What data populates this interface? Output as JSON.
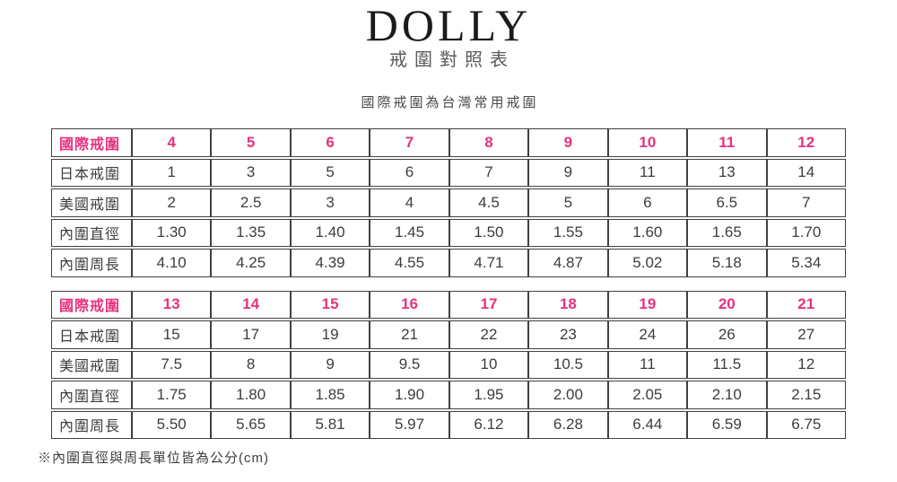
{
  "header": {
    "logo": "DOLLY",
    "subtitle": "戒圍對照表",
    "note": "國際戒圍為台灣常用戒圍"
  },
  "colors": {
    "accent_pink": "#e6327e",
    "text_dark": "#3d3d3d",
    "border_gray": "#414141"
  },
  "chart_data": [
    {
      "type": "table",
      "title": "戒圍對照表 (國際戒圍 4-12)",
      "rows": [
        [
          "國際戒圍",
          "4",
          "5",
          "6",
          "7",
          "8",
          "9",
          "10",
          "11",
          "12"
        ],
        [
          "日本戒圍",
          "1",
          "3",
          "5",
          "6",
          "7",
          "9",
          "11",
          "13",
          "14"
        ],
        [
          "美國戒圍",
          "2",
          "2.5",
          "3",
          "4",
          "4.5",
          "5",
          "6",
          "6.5",
          "7"
        ],
        [
          "內圍直徑",
          "1.30",
          "1.35",
          "1.40",
          "1.45",
          "1.50",
          "1.55",
          "1.60",
          "1.65",
          "1.70"
        ],
        [
          "內圍周長",
          "4.10",
          "4.25",
          "4.39",
          "4.55",
          "4.71",
          "4.87",
          "5.02",
          "5.18",
          "5.34"
        ]
      ]
    },
    {
      "type": "table",
      "title": "戒圍對照表 (國際戒圍 13-21)",
      "rows": [
        [
          "國際戒圍",
          "13",
          "14",
          "15",
          "16",
          "17",
          "18",
          "19",
          "20",
          "21"
        ],
        [
          "日本戒圍",
          "15",
          "17",
          "19",
          "21",
          "22",
          "23",
          "24",
          "26",
          "27"
        ],
        [
          "美國戒圍",
          "7.5",
          "8",
          "9",
          "9.5",
          "10",
          "10.5",
          "11",
          "11.5",
          "12"
        ],
        [
          "內圍直徑",
          "1.75",
          "1.80",
          "1.85",
          "1.90",
          "1.95",
          "2.00",
          "2.05",
          "2.10",
          "2.15"
        ],
        [
          "內圍周長",
          "5.50",
          "5.65",
          "5.81",
          "5.97",
          "6.12",
          "6.28",
          "6.44",
          "6.59",
          "6.75"
        ]
      ]
    }
  ],
  "footnote": "※內圍直徑與周長單位皆為公分(cm)"
}
